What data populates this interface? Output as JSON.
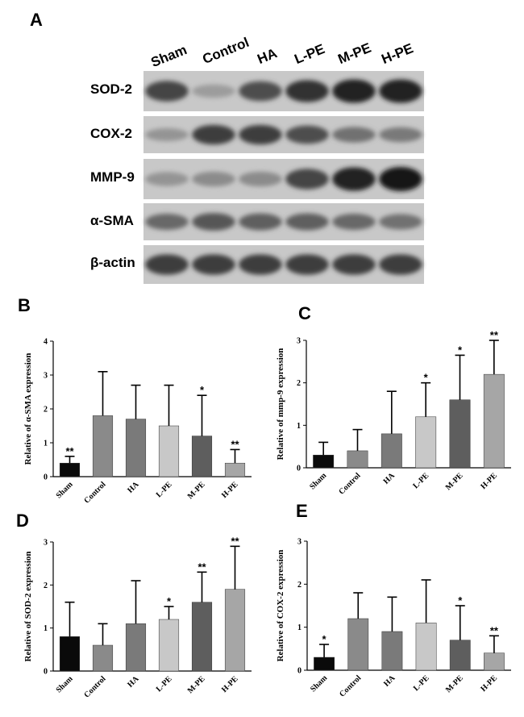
{
  "figure": {
    "panels": {
      "A": "A",
      "B": "B",
      "C": "C",
      "D": "D",
      "E": "E"
    },
    "blot": {
      "lanes": [
        "Sham",
        "Control",
        "HA",
        "L-PE",
        "M-PE",
        "H-PE"
      ],
      "rows": [
        "SOD-2",
        "COX-2",
        "MMP-9",
        "α-SMA",
        "β-actin"
      ],
      "band_intensity": {
        "SOD-2": [
          0.75,
          0.25,
          0.7,
          0.85,
          0.95,
          0.95
        ],
        "COX-2": [
          0.3,
          0.8,
          0.8,
          0.7,
          0.5,
          0.45
        ],
        "MMP-9": [
          0.3,
          0.35,
          0.35,
          0.75,
          0.95,
          1.0
        ],
        "α-SMA": [
          0.55,
          0.65,
          0.6,
          0.6,
          0.55,
          0.5
        ],
        "β-actin": [
          0.8,
          0.8,
          0.8,
          0.8,
          0.8,
          0.8
        ]
      }
    }
  },
  "chart_data": [
    {
      "panel": "B",
      "type": "bar",
      "categories": [
        "Sham",
        "Control",
        "HA",
        "L-PE",
        "M-PE",
        "H-PE"
      ],
      "values": [
        0.4,
        1.8,
        1.7,
        1.5,
        1.2,
        0.4
      ],
      "errors": [
        0.2,
        1.3,
        1.0,
        1.2,
        1.2,
        0.4
      ],
      "significance": [
        "**",
        "",
        "",
        "",
        "*",
        "**"
      ],
      "ylabel": "Relative of α-SMA expression",
      "ylim": [
        0,
        4
      ],
      "yticks": [
        "0",
        "1",
        "2",
        "3",
        "4"
      ],
      "colors": [
        "#0a0a0a",
        "#8a8a8a",
        "#7a7a7a",
        "#c8c8c8",
        "#5e5e5e",
        "#a6a6a6"
      ]
    },
    {
      "panel": "C",
      "type": "bar",
      "categories": [
        "Sham",
        "Control",
        "HA",
        "L-PE",
        "M-PE",
        "H-PE"
      ],
      "values": [
        0.3,
        0.4,
        0.8,
        1.2,
        1.6,
        2.2
      ],
      "errors": [
        0.3,
        0.5,
        1.0,
        0.8,
        1.05,
        0.8
      ],
      "significance": [
        "",
        "",
        "",
        "*",
        "*",
        "**"
      ],
      "ylabel": "Relative of mmp-9 expression",
      "ylim": [
        0,
        3
      ],
      "yticks": [
        "0",
        "1",
        "2",
        "3"
      ],
      "colors": [
        "#0a0a0a",
        "#8a8a8a",
        "#7a7a7a",
        "#c8c8c8",
        "#5e5e5e",
        "#a6a6a6"
      ]
    },
    {
      "panel": "D",
      "type": "bar",
      "categories": [
        "Sham",
        "Control",
        "HA",
        "L-PE",
        "M-PE",
        "H-PE"
      ],
      "values": [
        0.8,
        0.6,
        1.1,
        1.2,
        1.6,
        1.9
      ],
      "errors": [
        0.8,
        0.5,
        1.0,
        0.3,
        0.7,
        1.0
      ],
      "significance": [
        "",
        "",
        "",
        "*",
        "**",
        "**"
      ],
      "ylabel": "Relative of SOD-2 expression",
      "ylim": [
        0,
        3
      ],
      "yticks": [
        "0",
        "1",
        "2",
        "3"
      ],
      "colors": [
        "#0a0a0a",
        "#8a8a8a",
        "#7a7a7a",
        "#c8c8c8",
        "#5e5e5e",
        "#a6a6a6"
      ]
    },
    {
      "panel": "E",
      "type": "bar",
      "categories": [
        "Sham",
        "Control",
        "HA",
        "L-PE",
        "M-PE",
        "H-PE"
      ],
      "values": [
        0.3,
        1.2,
        0.9,
        1.1,
        0.7,
        0.4
      ],
      "errors": [
        0.3,
        0.6,
        0.8,
        1.0,
        0.8,
        0.4
      ],
      "significance": [
        "*",
        "",
        "",
        "",
        "*",
        "**"
      ],
      "ylabel": "Relative of COX-2 expression",
      "ylim": [
        0,
        3
      ],
      "yticks": [
        "0",
        "1",
        "2",
        "3"
      ],
      "colors": [
        "#0a0a0a",
        "#8a8a8a",
        "#7a7a7a",
        "#c8c8c8",
        "#5e5e5e",
        "#a6a6a6"
      ]
    }
  ]
}
